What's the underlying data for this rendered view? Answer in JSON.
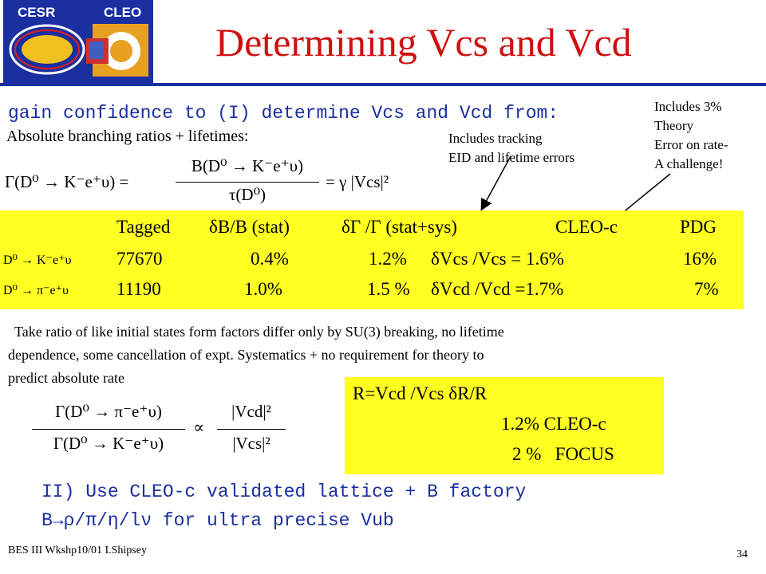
{
  "logo": {
    "left_text": "CESR",
    "right_text": "CLEO"
  },
  "title": "Determining Vcs and Vcd",
  "intro": "gain confidence to (I) determine Vcs and Vcd from:",
  "abs_line": "Absolute branching ratios + lifetimes:",
  "notes": {
    "tracking": [
      "Includes tracking",
      "EID and lifetime errors"
    ],
    "theory": [
      "Includes 3%",
      "Theory",
      "Error on rate-",
      "A challenge!"
    ]
  },
  "eq1": {
    "lhs": "Γ(D⁰ → K⁻e⁺υ) =",
    "num": "B(D⁰ → K⁻e⁺υ)",
    "den": "τ(D⁰)",
    "rhs": "= γ |Vcs|²"
  },
  "table": {
    "headers": [
      "Tagged",
      "δB/B (stat)",
      "δΓ /Γ (stat+sys)",
      "CLEO-c",
      "PDG"
    ],
    "rows": [
      {
        "decay": "D⁰ → K⁻e⁺υ",
        "tagged": "77670",
        "stat": "0.4%",
        "statsys": "1.2%",
        "cleoc": "δVcs /Vcs = 1.6%",
        "pdg": "16%"
      },
      {
        "decay": "D⁰ → π⁻e⁺υ",
        "tagged": "11190",
        "stat": "1.0%",
        "statsys": "1.5 %",
        "cleoc": "δVcd /Vcd =1.7%",
        "pdg": "7%"
      }
    ]
  },
  "paragraph": [
    "Take ratio of like initial states form factors differ only by SU(3)  breaking, no lifetime",
    "dependence, some cancellation of expt. Systematics + no requirement for theory to",
    "predict absolute rate"
  ],
  "eq2": {
    "num": "Γ(D⁰ → π⁻e⁺υ)",
    "den": "Γ(D⁰ → K⁻e⁺υ)",
    "prop": "∝",
    "rnum": "|Vcd|²",
    "rden": "|Vcs|²"
  },
  "ratio_box": {
    "line1": "R=Vcd /Vcs  δR/R",
    "line2": "1.2%  CLEO-c",
    "line3": "2 %   FOCUS"
  },
  "bullet2": {
    "line1": "II) Use CLEO-c validated lattice + B factory",
    "line2": "B→ρ/π/η/lν  for ultra precise Vub"
  },
  "footer": "BES III Wkshp10/01 I.Shipsey",
  "page_number": "34"
}
